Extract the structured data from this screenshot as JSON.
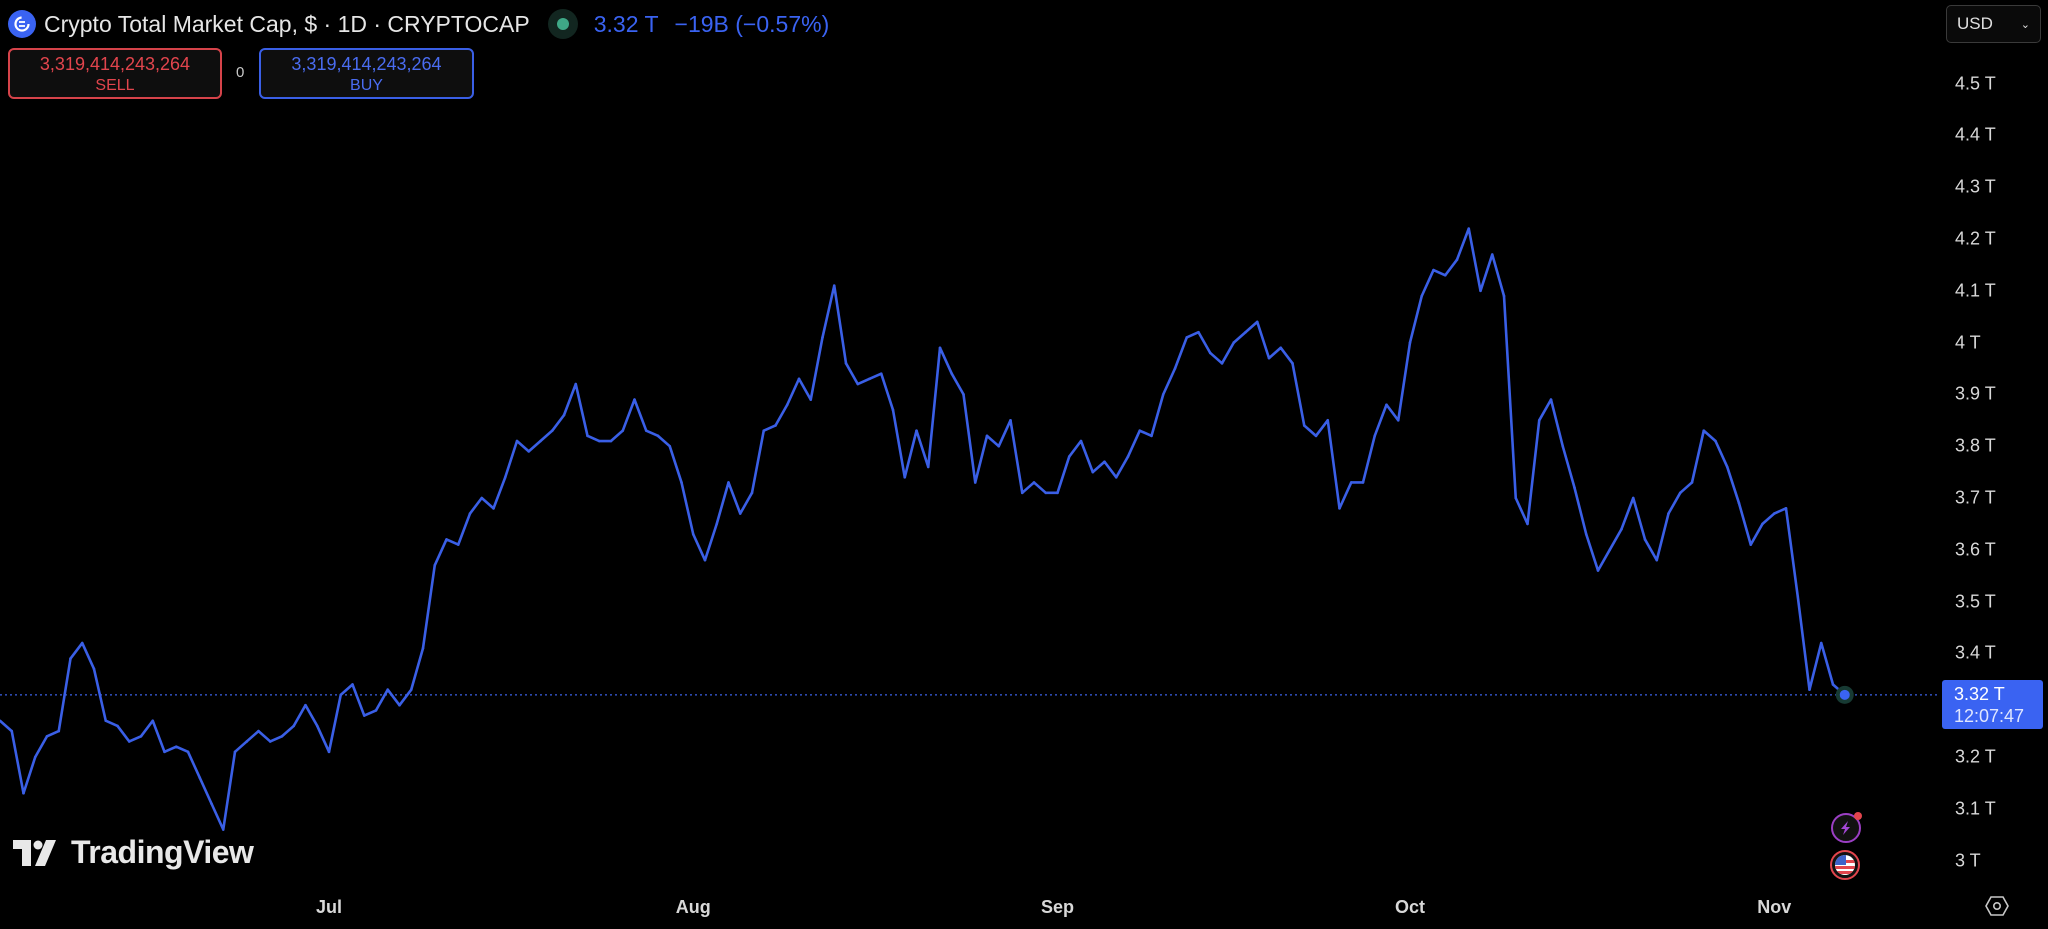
{
  "header": {
    "title": "Crypto Total Market Cap, $ · 1D · CRYPTOCAP",
    "price": "3.32 T",
    "change": "−19B (−0.57%)"
  },
  "trade": {
    "sell_price": "3,319,414,243,264",
    "sell_label": "SELL",
    "spread": "0",
    "buy_price": "3,319,414,243,264",
    "buy_label": "BUY"
  },
  "currency": {
    "selected": "USD"
  },
  "price_label": {
    "value": "3.32 T",
    "countdown": "12:07:47"
  },
  "branding": {
    "text": "TradingView"
  },
  "colors": {
    "line": "#3a5fe6",
    "sell": "#e2454d",
    "buy": "#4a6cf0",
    "accent": "#3a63f2"
  },
  "icons": [
    "crypto-logo-icon",
    "market-status-icon",
    "chevron-down-icon",
    "lightning-icon",
    "us-flag-icon",
    "settings-hexagon-icon"
  ],
  "chart_data": {
    "type": "line",
    "title": "",
    "xlabel": "",
    "ylabel": "",
    "ylim": [
      2.95,
      4.55
    ],
    "y_unit": "T",
    "yticks": [
      "4.5 T",
      "4.4 T",
      "4.3 T",
      "4.2 T",
      "4.1 T",
      "4 T",
      "3.9 T",
      "3.8 T",
      "3.7 T",
      "3.6 T",
      "3.5 T",
      "3.4 T",
      "3.2 T",
      "3.1 T",
      "3 T"
    ],
    "ytick_values": [
      4.5,
      4.4,
      4.3,
      4.2,
      4.1,
      4.0,
      3.9,
      3.8,
      3.7,
      3.6,
      3.5,
      3.4,
      3.2,
      3.1,
      3.0
    ],
    "xticks": [
      "Jul",
      "Aug",
      "Sep",
      "Oct",
      "Nov"
    ],
    "current_value": 3.32,
    "grid": false,
    "x": [
      "Jun 3",
      "Jun 4",
      "Jun 5",
      "Jun 6",
      "Jun 7",
      "Jun 8",
      "Jun 9",
      "Jun 10",
      "Jun 11",
      "Jun 12",
      "Jun 13",
      "Jun 14",
      "Jun 15",
      "Jun 16",
      "Jun 17",
      "Jun 18",
      "Jun 19",
      "Jun 20",
      "Jun 21",
      "Jun 22",
      "Jun 23",
      "Jun 24",
      "Jun 25",
      "Jun 26",
      "Jun 27",
      "Jun 28",
      "Jun 29",
      "Jun 30",
      "Jul 1",
      "Jul 2",
      "Jul 3",
      "Jul 4",
      "Jul 5",
      "Jul 6",
      "Jul 7",
      "Jul 8",
      "Jul 9",
      "Jul 10",
      "Jul 11",
      "Jul 12",
      "Jul 13",
      "Jul 14",
      "Jul 15",
      "Jul 16",
      "Jul 17",
      "Jul 18",
      "Jul 19",
      "Jul 20",
      "Jul 21",
      "Jul 22",
      "Jul 23",
      "Jul 24",
      "Jul 25",
      "Jul 26",
      "Jul 27",
      "Jul 28",
      "Jul 29",
      "Jul 30",
      "Jul 31",
      "Aug 1",
      "Aug 2",
      "Aug 3",
      "Aug 4",
      "Aug 5",
      "Aug 6",
      "Aug 7",
      "Aug 8",
      "Aug 9",
      "Aug 10",
      "Aug 11",
      "Aug 12",
      "Aug 13",
      "Aug 14",
      "Aug 15",
      "Aug 16",
      "Aug 17",
      "Aug 18",
      "Aug 19",
      "Aug 20",
      "Aug 21",
      "Aug 22",
      "Aug 23",
      "Aug 24",
      "Aug 25",
      "Aug 26",
      "Aug 27",
      "Aug 28",
      "Aug 29",
      "Aug 30",
      "Aug 31",
      "Sep 1",
      "Sep 2",
      "Sep 3",
      "Sep 4",
      "Sep 5",
      "Sep 6",
      "Sep 7",
      "Sep 8",
      "Sep 9",
      "Sep 10",
      "Sep 11",
      "Sep 12",
      "Sep 13",
      "Sep 14",
      "Sep 15",
      "Sep 16",
      "Sep 17",
      "Sep 18",
      "Sep 19",
      "Sep 20",
      "Sep 21",
      "Sep 22",
      "Sep 23",
      "Sep 24",
      "Sep 25",
      "Sep 26",
      "Sep 27",
      "Sep 28",
      "Sep 29",
      "Sep 30",
      "Oct 1",
      "Oct 2",
      "Oct 3",
      "Oct 4",
      "Oct 5",
      "Oct 6",
      "Oct 7",
      "Oct 8",
      "Oct 9",
      "Oct 10",
      "Oct 11",
      "Oct 12",
      "Oct 13",
      "Oct 14",
      "Oct 15",
      "Oct 16",
      "Oct 17",
      "Oct 18",
      "Oct 19",
      "Oct 20",
      "Oct 21",
      "Oct 22",
      "Oct 23",
      "Oct 24",
      "Oct 25",
      "Oct 26",
      "Oct 27",
      "Oct 28",
      "Oct 29",
      "Oct 30",
      "Oct 31",
      "Nov 1",
      "Nov 2",
      "Nov 3",
      "Nov 4",
      "Nov 5",
      "Nov 6",
      "Nov 7"
    ],
    "series": [
      {
        "values": [
          3.27,
          3.25,
          3.13,
          3.2,
          3.24,
          3.25,
          3.39,
          3.42,
          3.37,
          3.27,
          3.26,
          3.23,
          3.24,
          3.27,
          3.21,
          3.22,
          3.21,
          3.16,
          3.11,
          3.06,
          3.21,
          3.23,
          3.25,
          3.23,
          3.24,
          3.26,
          3.3,
          3.26,
          3.21,
          3.32,
          3.34,
          3.28,
          3.29,
          3.33,
          3.3,
          3.33,
          3.41,
          3.57,
          3.62,
          3.61,
          3.67,
          3.7,
          3.68,
          3.74,
          3.81,
          3.79,
          3.81,
          3.83,
          3.86,
          3.92,
          3.82,
          3.81,
          3.81,
          3.83,
          3.89,
          3.83,
          3.82,
          3.8,
          3.73,
          3.63,
          3.58,
          3.65,
          3.73,
          3.67,
          3.71,
          3.83,
          3.84,
          3.88,
          3.93,
          3.89,
          4.01,
          4.11,
          3.96,
          3.92,
          3.93,
          3.94,
          3.87,
          3.74,
          3.83,
          3.76,
          3.99,
          3.94,
          3.9,
          3.73,
          3.82,
          3.8,
          3.85,
          3.71,
          3.73,
          3.71,
          3.71,
          3.78,
          3.81,
          3.75,
          3.77,
          3.74,
          3.78,
          3.83,
          3.82,
          3.9,
          3.95,
          4.01,
          4.02,
          3.98,
          3.96,
          4.0,
          4.02,
          4.04,
          3.97,
          3.99,
          3.96,
          3.84,
          3.82,
          3.85,
          3.68,
          3.73,
          3.73,
          3.82,
          3.88,
          3.85,
          4.0,
          4.09,
          4.14,
          4.13,
          4.16,
          4.22,
          4.1,
          4.17,
          4.09,
          3.7,
          3.65,
          3.85,
          3.89,
          3.8,
          3.72,
          3.63,
          3.56,
          3.6,
          3.64,
          3.7,
          3.62,
          3.58,
          3.67,
          3.71,
          3.73,
          3.83,
          3.81,
          3.76,
          3.69,
          3.61,
          3.65,
          3.67,
          3.68,
          3.51,
          3.33,
          3.42,
          3.34,
          3.32
        ]
      }
    ]
  }
}
